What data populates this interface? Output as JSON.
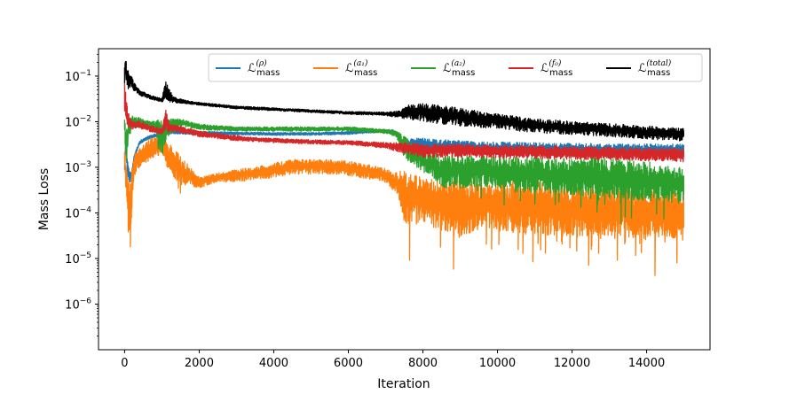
{
  "chart_data": {
    "type": "line",
    "title": "",
    "xlabel": "Iteration",
    "ylabel": "Mass Loss",
    "xlim": [
      -700,
      15700
    ],
    "ylim_log10": [
      -7.0,
      -0.4
    ],
    "yscale": "log",
    "x_ticks": [
      0,
      2000,
      4000,
      6000,
      8000,
      10000,
      12000,
      14000
    ],
    "x_tick_labels": [
      "0",
      "2000",
      "4000",
      "6000",
      "8000",
      "10000",
      "12000",
      "14000"
    ],
    "y_ticks_exp": [
      -6,
      -5,
      -4,
      -3,
      -2,
      -1
    ],
    "y_tick_base": "10",
    "y_tick_exponents": [
      "−6",
      "−5",
      "−4",
      "−3",
      "−2",
      "−1"
    ],
    "legend_position": "top-right",
    "legend_symbol": "ℒ",
    "legend_subscript": "mass",
    "series": [
      {
        "name": "L_mass^(rho)",
        "superscript": "(ρ)",
        "color": "#1f77b4",
        "x": [
          0,
          30,
          80,
          150,
          200,
          260,
          400,
          600,
          800,
          1000,
          1200,
          1500,
          2000,
          3000,
          4000,
          5000,
          6000,
          6800,
          7200,
          7400,
          7500,
          7700,
          8000,
          8500,
          9000,
          9500,
          10000,
          11000,
          12000,
          13000,
          14000,
          15000
        ],
        "log10_center": [
          -3.0,
          -2.4,
          -3.0,
          -3.2,
          -3.1,
          -2.75,
          -2.45,
          -2.35,
          -2.3,
          -2.3,
          -2.22,
          -2.22,
          -2.24,
          -2.25,
          -2.26,
          -2.26,
          -2.24,
          -2.2,
          -2.2,
          -2.35,
          -2.55,
          -2.45,
          -2.45,
          -2.5,
          -2.52,
          -2.55,
          -2.55,
          -2.57,
          -2.58,
          -2.6,
          -2.6,
          -2.6
        ],
        "log10_width": [
          0.05,
          0.3,
          0.3,
          0.15,
          0.1,
          0.05,
          0.05,
          0.05,
          0.05,
          0.05,
          0.05,
          0.05,
          0.05,
          0.04,
          0.04,
          0.04,
          0.04,
          0.04,
          0.04,
          0.1,
          0.12,
          0.15,
          0.15,
          0.18,
          0.18,
          0.18,
          0.18,
          0.18,
          0.18,
          0.18,
          0.18,
          0.18
        ]
      },
      {
        "name": "L_mass^(a1)",
        "superscript": "(a₁)",
        "color": "#ff7f0e",
        "x": [
          0,
          50,
          100,
          150,
          200,
          250,
          400,
          600,
          800,
          1000,
          1200,
          1500,
          2000,
          2500,
          3000,
          3500,
          4000,
          4500,
          5000,
          5500,
          6000,
          6500,
          7000,
          7300,
          7500,
          8000,
          8500,
          9000,
          9500,
          10000,
          10500,
          11000,
          11500,
          12000,
          12500,
          13000,
          13500,
          14000,
          14500,
          15000
        ],
        "log10_center": [
          -2.8,
          -3.3,
          -3.6,
          -4.0,
          -3.3,
          -2.9,
          -2.75,
          -2.6,
          -2.5,
          -2.4,
          -2.7,
          -3.0,
          -3.3,
          -3.2,
          -3.15,
          -3.1,
          -3.03,
          -2.95,
          -2.95,
          -2.95,
          -2.98,
          -3.05,
          -3.15,
          -3.3,
          -3.5,
          -3.6,
          -3.7,
          -3.75,
          -3.7,
          -3.7,
          -3.75,
          -3.75,
          -3.8,
          -3.8,
          -3.8,
          -3.85,
          -3.85,
          -3.9,
          -3.9,
          -3.9
        ],
        "log10_width": [
          0.3,
          0.4,
          0.6,
          1.2,
          0.6,
          0.3,
          0.3,
          0.3,
          0.3,
          0.3,
          0.4,
          0.4,
          0.15,
          0.12,
          0.17,
          0.18,
          0.2,
          0.2,
          0.2,
          0.2,
          0.2,
          0.2,
          0.2,
          0.3,
          0.8,
          0.6,
          0.7,
          0.8,
          0.7,
          0.7,
          0.7,
          0.75,
          0.7,
          0.75,
          0.7,
          0.75,
          0.7,
          0.7,
          0.7,
          0.7
        ]
      },
      {
        "name": "L_mass^(a2)",
        "superscript": "(a₂)",
        "color": "#2ca02c",
        "x": [
          0,
          50,
          100,
          200,
          400,
          600,
          800,
          1000,
          1100,
          1500,
          2000,
          3000,
          4000,
          5000,
          6000,
          7000,
          7300,
          7500,
          8000,
          8500,
          9000,
          9500,
          10000,
          10500,
          11000,
          11500,
          12000,
          12500,
          13000,
          13500,
          14000,
          14500,
          15000
        ],
        "log10_center": [
          -2.0,
          -2.5,
          -2.1,
          -1.95,
          -2.0,
          -2.05,
          -2.05,
          -2.3,
          -2.1,
          -2.0,
          -2.1,
          -2.15,
          -2.15,
          -2.15,
          -2.15,
          -2.2,
          -2.25,
          -2.5,
          -2.8,
          -3.0,
          -3.0,
          -3.0,
          -3.0,
          -3.05,
          -3.05,
          -3.1,
          -3.1,
          -3.1,
          -3.15,
          -3.15,
          -3.2,
          -3.25,
          -3.3
        ],
        "log10_width": [
          0.3,
          0.5,
          0.3,
          0.2,
          0.15,
          0.12,
          0.12,
          0.6,
          0.3,
          0.1,
          0.08,
          0.06,
          0.06,
          0.06,
          0.06,
          0.06,
          0.1,
          0.3,
          0.3,
          0.45,
          0.45,
          0.45,
          0.45,
          0.5,
          0.5,
          0.5,
          0.5,
          0.55,
          0.55,
          0.55,
          0.55,
          0.5,
          0.5
        ]
      },
      {
        "name": "L_mass^(f0)",
        "superscript": "(f₀)",
        "color": "#d62728",
        "x": [
          0,
          40,
          100,
          200,
          400,
          600,
          800,
          1000,
          1100,
          1200,
          1500,
          2000,
          3000,
          4000,
          5000,
          6000,
          7000,
          7500,
          8000,
          9000,
          10000,
          11000,
          12000,
          13000,
          14000,
          15000
        ],
        "log10_center": [
          -1.3,
          -1.7,
          -1.95,
          -2.05,
          -2.05,
          -2.1,
          -2.15,
          -2.2,
          -1.9,
          -2.1,
          -2.15,
          -2.25,
          -2.35,
          -2.4,
          -2.43,
          -2.45,
          -2.5,
          -2.55,
          -2.6,
          -2.6,
          -2.62,
          -2.63,
          -2.65,
          -2.66,
          -2.68,
          -2.7
        ],
        "log10_width": [
          0.4,
          0.5,
          0.25,
          0.12,
          0.1,
          0.1,
          0.1,
          0.1,
          0.3,
          0.12,
          0.1,
          0.08,
          0.07,
          0.06,
          0.06,
          0.06,
          0.08,
          0.15,
          0.18,
          0.18,
          0.18,
          0.18,
          0.18,
          0.18,
          0.18,
          0.18
        ]
      },
      {
        "name": "L_mass^(total)",
        "superscript": "(total)",
        "color": "#000000",
        "x": [
          0,
          20,
          60,
          150,
          250,
          400,
          600,
          800,
          1000,
          1100,
          1300,
          1600,
          2000,
          3000,
          4000,
          5000,
          6000,
          7000,
          7400,
          7600,
          8000,
          8500,
          9000,
          10000,
          11000,
          12000,
          13000,
          14000,
          15000
        ],
        "log10_center": [
          -0.85,
          -0.7,
          -1.0,
          -1.05,
          -1.2,
          -1.35,
          -1.42,
          -1.48,
          -1.52,
          -1.3,
          -1.5,
          -1.55,
          -1.6,
          -1.68,
          -1.72,
          -1.76,
          -1.8,
          -1.82,
          -1.82,
          -1.75,
          -1.75,
          -1.8,
          -1.85,
          -1.95,
          -2.05,
          -2.1,
          -2.15,
          -2.2,
          -2.25
        ],
        "log10_width": [
          0.3,
          0.3,
          0.3,
          0.2,
          0.12,
          0.08,
          0.06,
          0.05,
          0.05,
          0.3,
          0.08,
          0.05,
          0.04,
          0.04,
          0.04,
          0.04,
          0.04,
          0.05,
          0.1,
          0.2,
          0.25,
          0.25,
          0.25,
          0.2,
          0.2,
          0.18,
          0.18,
          0.18,
          0.18
        ]
      }
    ]
  }
}
